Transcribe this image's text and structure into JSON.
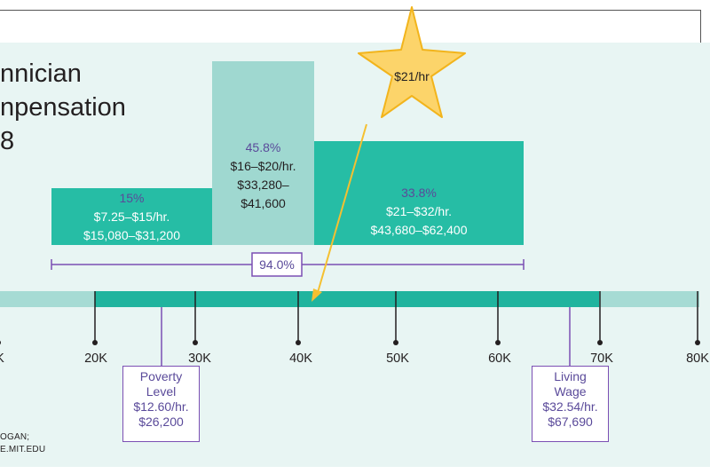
{
  "title": {
    "line1": "nnician",
    "line2": "npensation",
    "line3": "8"
  },
  "chart_data": {
    "type": "bar",
    "bars": [
      {
        "percent_label": "15%",
        "wage_label": "$7.25–$15/hr.",
        "salary_label": "$15,080–$31,200",
        "x_start": 15080,
        "x_end": 31200,
        "percent": 15
      },
      {
        "percent_label": "45.8%",
        "wage_label": "$16–$20/hr.",
        "salary_label_1": "$33,280–",
        "salary_label_2": "$41,600",
        "x_start": 31200,
        "x_end": 41600,
        "percent": 45.8
      },
      {
        "percent_label": "33.8%",
        "wage_label": "$21–$32/hr.",
        "salary_label": "$43,680–$62,400",
        "x_start": 41600,
        "x_end": 64500,
        "percent": 33.8
      }
    ],
    "bracket_label": "94.0%",
    "axis_ticks": [
      "K",
      "20K",
      "30K",
      "40K",
      "50K",
      "60K",
      "70K",
      "80K"
    ],
    "axis_tick_values": [
      10000,
      20000,
      30000,
      40000,
      50000,
      60000,
      70000,
      80000
    ],
    "axis_highlight_range": [
      20000,
      70000
    ],
    "star_label": "$21/hr",
    "poverty_callout": {
      "lines": [
        "Poverty",
        "Level",
        "$12.60/hr.",
        "$26,200"
      ],
      "value": 26200
    },
    "living_wage_callout": {
      "lines": [
        "Living",
        "Wage",
        "$32.54/hr.",
        "$67,690"
      ],
      "value": 67690
    }
  },
  "source": {
    "line1": "OGAN;",
    "line2": "E.MIT.EDU"
  },
  "colors": {
    "teal_dark": "#26bda5",
    "teal_light": "#9fd8d0",
    "axis_light": "#a6dbd4",
    "axis_dark": "#20b49e",
    "purple": "#7b4fb3",
    "star_fill": "#fcd46a",
    "star_stroke": "#f2b41c",
    "arrow": "#f5c030",
    "panel_bg": "#e8f5f3"
  }
}
